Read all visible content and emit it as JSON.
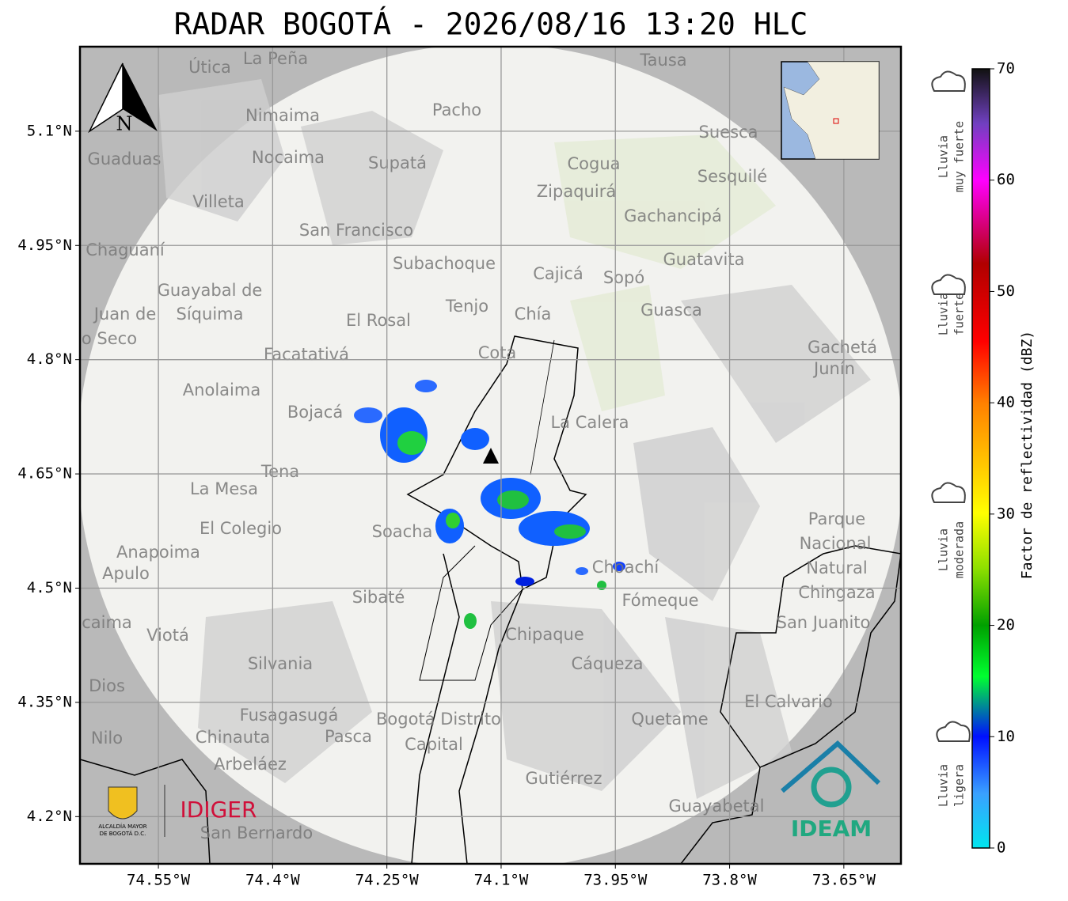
{
  "title": "RADAR BOGOTÁ - 2026/08/16 13:20 HLC",
  "map": {
    "lonlim": [
      -74.653,
      -73.575
    ],
    "latlim": [
      4.138,
      5.211
    ],
    "lon_ticks": [
      {
        "value": -74.55,
        "label": "74.55°W"
      },
      {
        "value": -74.4,
        "label": "74.4°W"
      },
      {
        "value": -74.25,
        "label": "74.25°W"
      },
      {
        "value": -74.1,
        "label": "74.1°W"
      },
      {
        "value": -73.95,
        "label": "73.95°W"
      },
      {
        "value": -73.8,
        "label": "73.8°W"
      },
      {
        "value": -73.65,
        "label": "73.65°W"
      }
    ],
    "lat_ticks": [
      {
        "value": 5.1,
        "label": "5.1°N"
      },
      {
        "value": 4.95,
        "label": "4.95°N"
      },
      {
        "value": 4.8,
        "label": "4.8°N"
      },
      {
        "value": 4.65,
        "label": "4.65°N"
      },
      {
        "value": 4.5,
        "label": "4.5°N"
      },
      {
        "value": 4.35,
        "label": "4.35°N"
      },
      {
        "value": 4.2,
        "label": "4.2°N"
      }
    ],
    "grid": true,
    "north_label": "N",
    "places": [
      "La Peña",
      "Útica",
      "Tausa",
      "Pacho",
      "Nimaima",
      "Guaduas",
      "Nocaima",
      "Supatá",
      "Suesca",
      "Cogua",
      "Sesquilé",
      "Zipaquirá",
      "Villeta",
      "San Francisco",
      "Gachancipá",
      "Chaguaní",
      "Guatavita",
      "Subachoque",
      "Cajicá",
      "Sopó",
      "Guayabal de",
      "Síquima",
      "Tenjo",
      "El Rosal",
      "Chía",
      "Guasca",
      "Juan de",
      "o Seco",
      "Facatativá",
      "Cota",
      "Gachetá",
      "Junín",
      "Anolaima",
      "Bojacá",
      "La Calera",
      "Tena",
      "La Mesa",
      "Parque",
      "Nacional",
      "Natural",
      "Chingaza",
      "El Colegio",
      "Soacha",
      "Anapoima",
      "Apulo",
      "Choachí",
      "Sibaté",
      "Fómeque",
      "San Juanito",
      "caima",
      "Viotá",
      "Chipaque",
      "Silvania",
      "Cáqueza",
      "Dios",
      "El Calvario",
      "Fusagasugá",
      "Bogotá Distrito",
      "Capital",
      "Quetame",
      "Nilo",
      "Chinauta",
      "Pasca",
      "Arbeláez",
      "Gutiérrez",
      "Guayabetal",
      "San Bernardo"
    ]
  },
  "colorbar": {
    "label": "Factor de reflectividad (dBZ)",
    "lim": [
      0,
      70
    ],
    "ticks": [
      0,
      10,
      20,
      30,
      40,
      50,
      60,
      70
    ]
  },
  "rain_levels": [
    [
      "Lluvia",
      "muy fuerte"
    ],
    [
      "Lluvia",
      "fuerte"
    ],
    [
      "Lluvia",
      "moderada"
    ],
    [
      "Lluvia",
      "ligera"
    ]
  ],
  "logos": {
    "idiger": "IDIGER",
    "alcaldia": [
      "ALCALDÍA MAYOR",
      "DE BOGOTÁ D.C."
    ],
    "ideam": "IDEAM"
  }
}
